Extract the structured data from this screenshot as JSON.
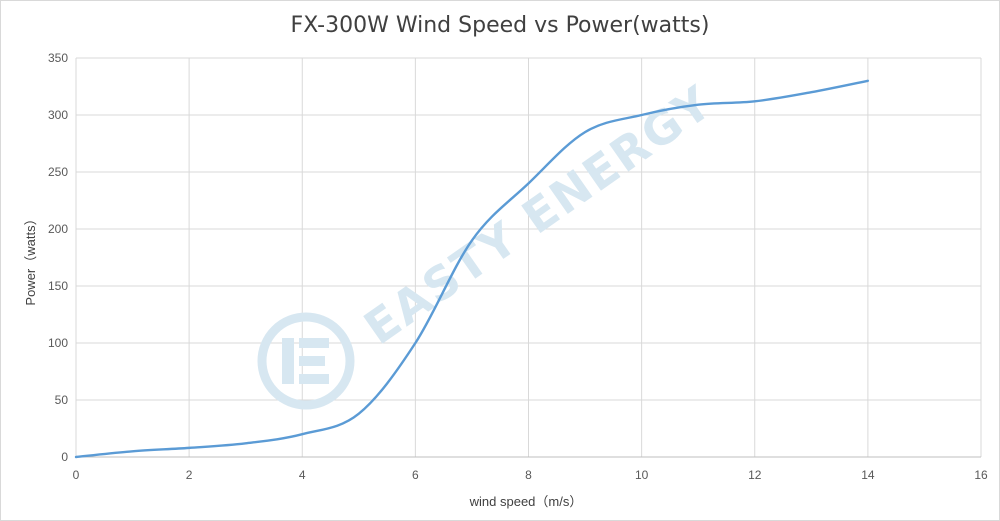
{
  "chart_data": {
    "type": "line",
    "title": "FX-300W Wind Speed vs Power(watts)",
    "xlabel": "wind speed（m/s）",
    "ylabel": "Power（watts）",
    "xlim": [
      0,
      16
    ],
    "ylim": [
      0,
      350
    ],
    "xticks": [
      0,
      2,
      4,
      6,
      8,
      10,
      12,
      14,
      16
    ],
    "yticks": [
      0,
      50,
      100,
      150,
      200,
      250,
      300,
      350
    ],
    "grid": true,
    "smooth": true,
    "x": [
      0,
      1,
      2,
      3,
      4,
      5,
      6,
      7,
      8,
      9,
      10,
      11,
      12,
      13,
      14
    ],
    "series": [
      {
        "values": [
          0,
          5,
          8,
          12,
          20,
          38,
          100,
          190,
          240,
          285,
          300,
          309,
          312,
          320,
          330
        ],
        "color": "#5b9bd5"
      }
    ]
  },
  "watermark": {
    "text": "EASTY ENERGY",
    "color": "#d7e7f1"
  }
}
